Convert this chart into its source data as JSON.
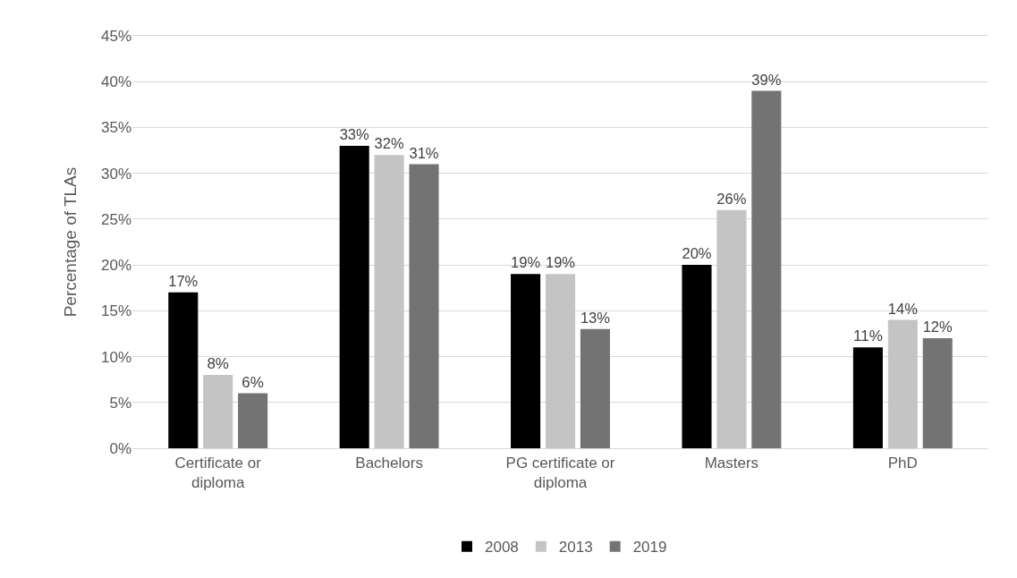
{
  "chart_data": {
    "type": "bar",
    "ylabel": "Percentage of TLAs",
    "categories": [
      "Certificate or diploma",
      "Bachelors",
      "PG certificate or diploma",
      "Masters",
      "PhD"
    ],
    "series": [
      {
        "name": "2008",
        "color": "#000000",
        "values": [
          17,
          33,
          19,
          20,
          11
        ],
        "value_labels": [
          "17%",
          "33%",
          "19%",
          "20%",
          "11%"
        ]
      },
      {
        "name": "2013",
        "color": "#c4c4c4",
        "values": [
          8,
          32,
          19,
          26,
          14
        ],
        "value_labels": [
          "8%",
          "32%",
          "19%",
          "26%",
          "14%"
        ]
      },
      {
        "name": "2019",
        "color": "#737373",
        "values": [
          6,
          31,
          13,
          39,
          12
        ],
        "value_labels": [
          "6%",
          "31%",
          "13%",
          "39%",
          "12%"
        ]
      }
    ],
    "ylim": [
      0,
      45
    ],
    "yticks": [
      {
        "value": 0,
        "label": "0%"
      },
      {
        "value": 5,
        "label": "5%"
      },
      {
        "value": 10,
        "label": "10%"
      },
      {
        "value": 15,
        "label": "15%"
      },
      {
        "value": 20,
        "label": "20%"
      },
      {
        "value": 25,
        "label": "25%"
      },
      {
        "value": 30,
        "label": "30%"
      },
      {
        "value": 35,
        "label": "35%"
      },
      {
        "value": 40,
        "label": "40%"
      },
      {
        "value": 45,
        "label": "45%"
      }
    ],
    "grid": "y",
    "legend": "bottom"
  }
}
